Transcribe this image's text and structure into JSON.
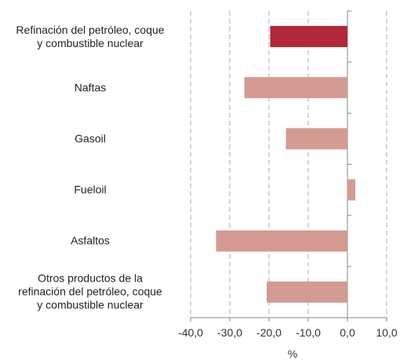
{
  "chart_data": {
    "type": "hbar",
    "categories": [
      "Refinación del petróleo, coque\ny combustible nuclear",
      "Naftas",
      "Gasoil",
      "Fueloil",
      "Asfaltos",
      "Otros productos de la\nrefinación del petróleo, coque\ny combustible nuclear"
    ],
    "values": [
      -19.7,
      -26.3,
      -15.7,
      2.0,
      -33.5,
      -20.6
    ],
    "colors": [
      "#b0283a",
      "#d39b91",
      "#d39b91",
      "#d39b91",
      "#d39b91",
      "#d39b91"
    ],
    "xlabel": "%",
    "xlim": [
      -40,
      10
    ],
    "xticks": [
      {
        "value": -40,
        "label": "-40,0"
      },
      {
        "value": -30,
        "label": "-30,0"
      },
      {
        "value": -20,
        "label": "-20,0"
      },
      {
        "value": -10,
        "label": "-10,0"
      },
      {
        "value": 0,
        "label": "0,0"
      },
      {
        "value": 10,
        "label": "10,0"
      }
    ],
    "grid": true
  }
}
